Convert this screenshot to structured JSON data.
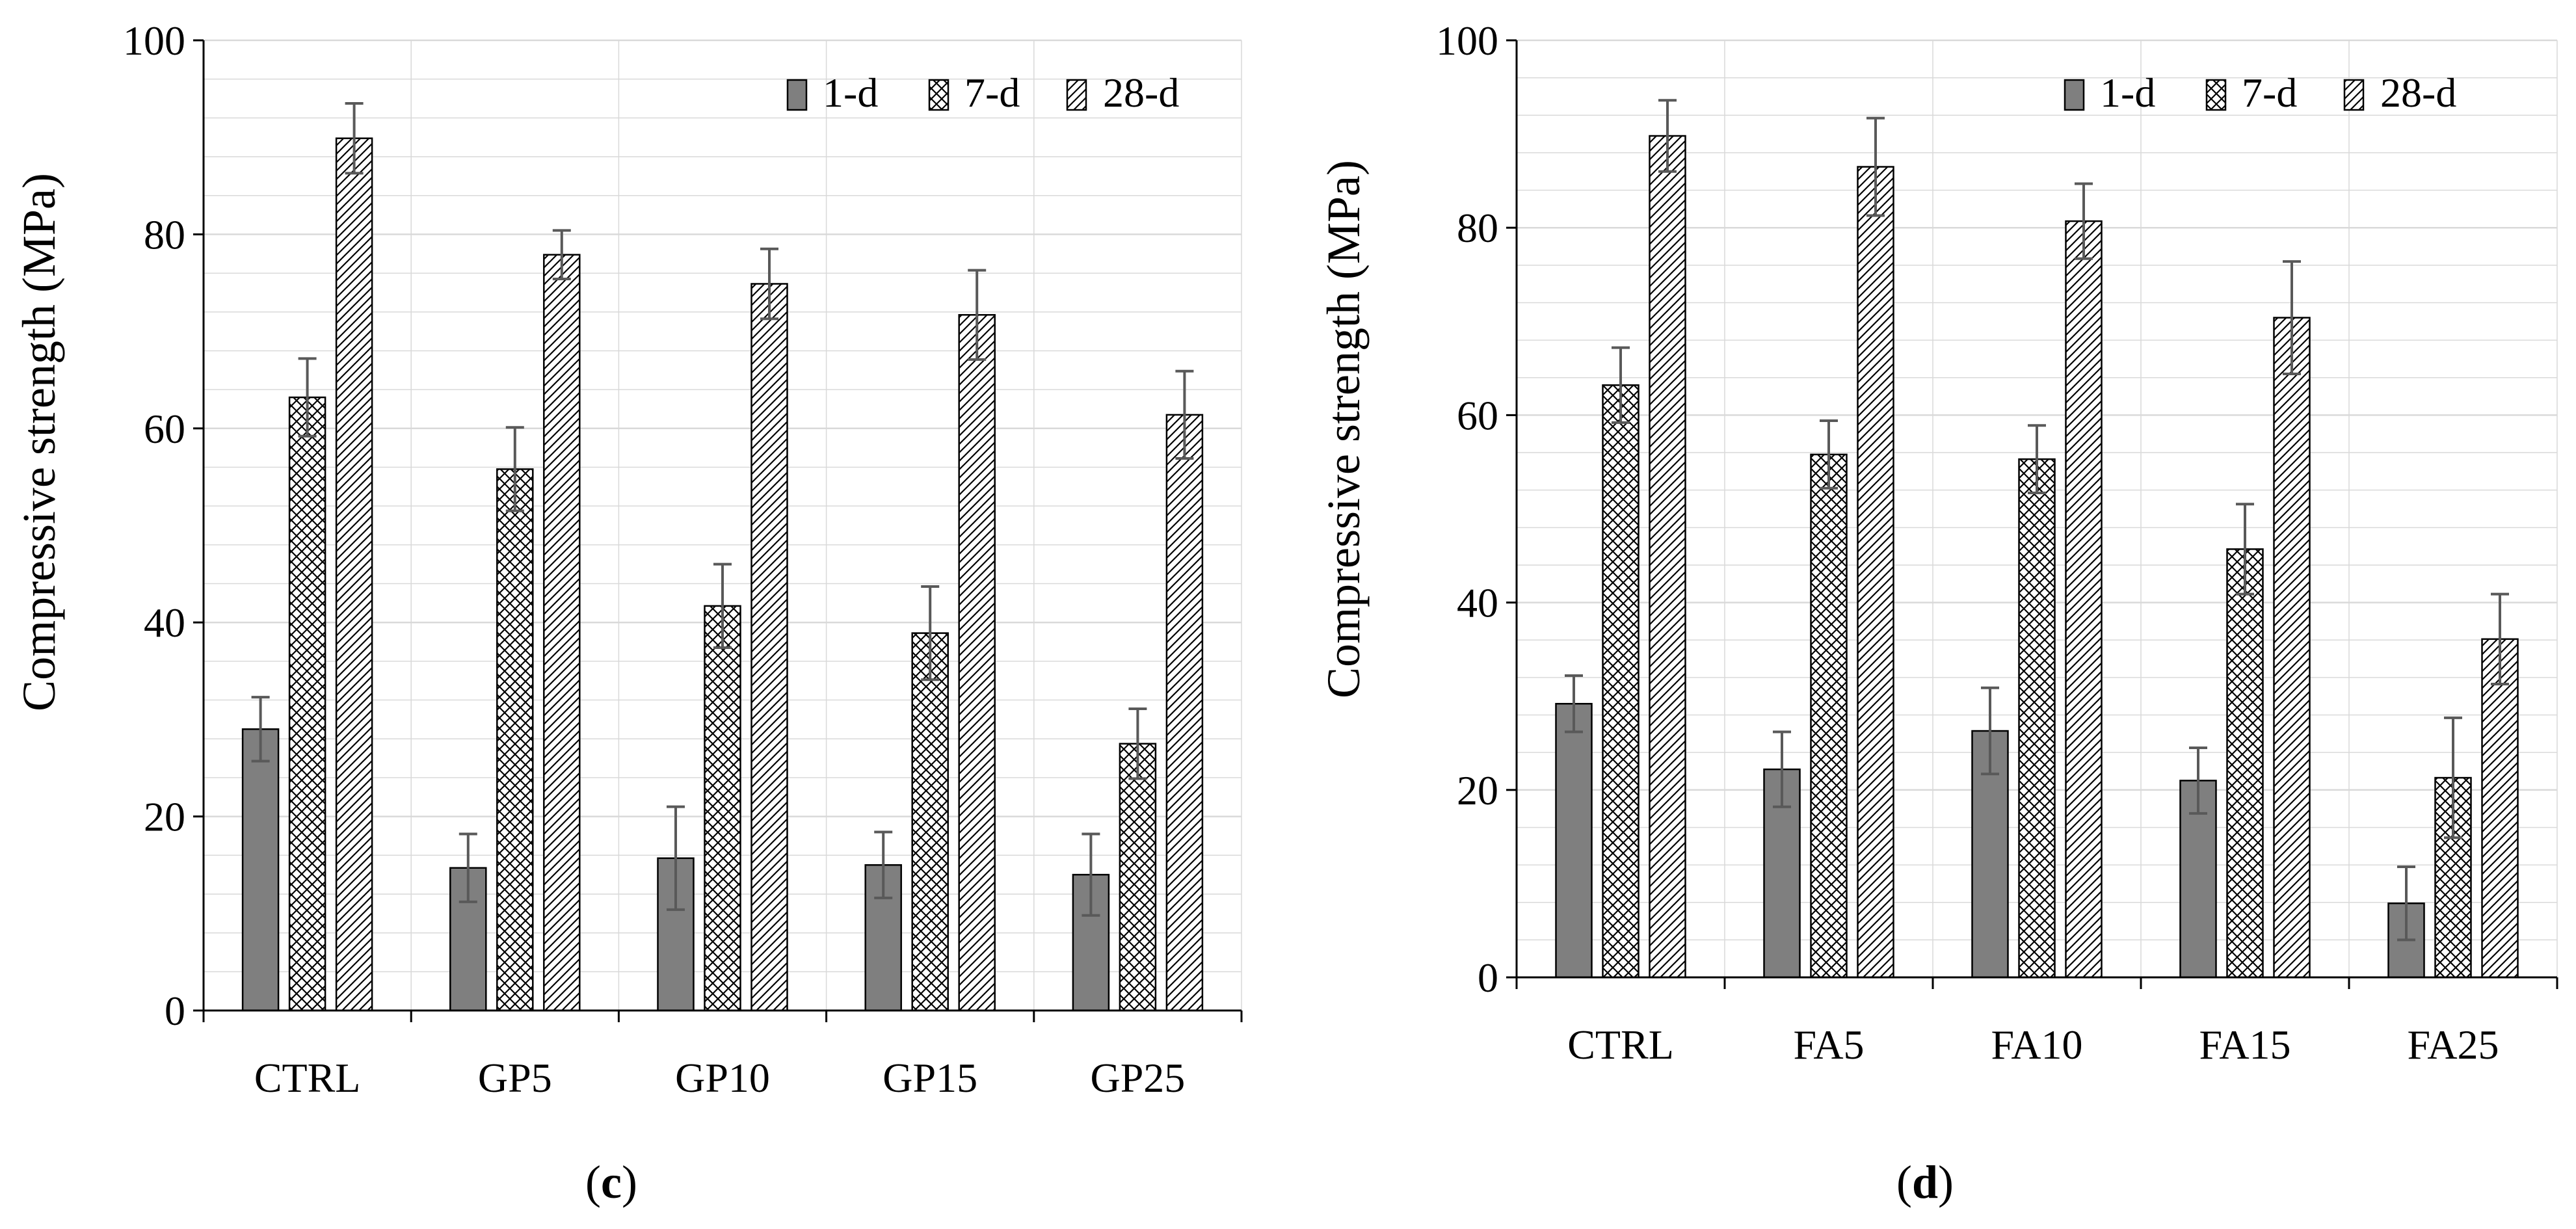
{
  "colors": {
    "bar_1d": "#7f7f7f",
    "bar_outline": "#000000",
    "error_bar": "#595959",
    "grid": "#d9d9d9",
    "axis": "#000000"
  },
  "chart_data": [
    {
      "type": "bar",
      "panel_label_prefix": "(",
      "panel_label_letter": "c",
      "panel_label_suffix": ")",
      "title": "",
      "xlabel": "",
      "ylabel": "Compressive strength (MPa)",
      "ylim": [
        0,
        100
      ],
      "yticks": [
        0,
        20,
        40,
        60,
        80,
        100
      ],
      "grid": true,
      "legend_position": "top-right",
      "categories": [
        "CTRL",
        "GP5",
        "GP10",
        "GP15",
        "GP25"
      ],
      "series": [
        {
          "name": "1-d",
          "pattern": "solid",
          "values": [
            29,
            14.7,
            15.7,
            15,
            14
          ],
          "errors": [
            3.3,
            3.5,
            5.3,
            3.4,
            4.2
          ]
        },
        {
          "name": "7-d",
          "pattern": "crosshatch",
          "values": [
            63.2,
            55.8,
            41.7,
            38.9,
            27.5
          ],
          "errors": [
            4,
            4.3,
            4.3,
            4.8,
            3.6
          ]
        },
        {
          "name": "28-d",
          "pattern": "diagonal",
          "values": [
            89.9,
            77.9,
            74.9,
            71.7,
            61.4
          ],
          "errors": [
            3.6,
            2.5,
            3.6,
            4.6,
            4.5
          ]
        }
      ]
    },
    {
      "type": "bar",
      "panel_label_prefix": "(",
      "panel_label_letter": "d",
      "panel_label_suffix": ")",
      "title": "",
      "xlabel": "",
      "ylabel": "Compressive strength (MPa)",
      "ylim": [
        0,
        100
      ],
      "yticks": [
        0,
        20,
        40,
        60,
        80,
        100
      ],
      "grid": true,
      "legend_position": "top-right",
      "categories": [
        "CTRL",
        "FA5",
        "FA10",
        "FA15",
        "FA25"
      ],
      "series": [
        {
          "name": "1-d",
          "pattern": "solid",
          "values": [
            29.2,
            22.2,
            26.3,
            21,
            7.9
          ],
          "errors": [
            3,
            4,
            4.6,
            3.5,
            3.9
          ]
        },
        {
          "name": "7-d",
          "pattern": "crosshatch",
          "values": [
            63.2,
            55.8,
            55.3,
            45.7,
            21.3
          ],
          "errors": [
            4,
            3.6,
            3.6,
            4.8,
            6.4
          ]
        },
        {
          "name": "28-d",
          "pattern": "diagonal",
          "values": [
            89.8,
            86.5,
            80.7,
            70.4,
            36.1
          ],
          "errors": [
            3.8,
            5.2,
            4,
            6,
            4.8
          ]
        }
      ]
    }
  ]
}
